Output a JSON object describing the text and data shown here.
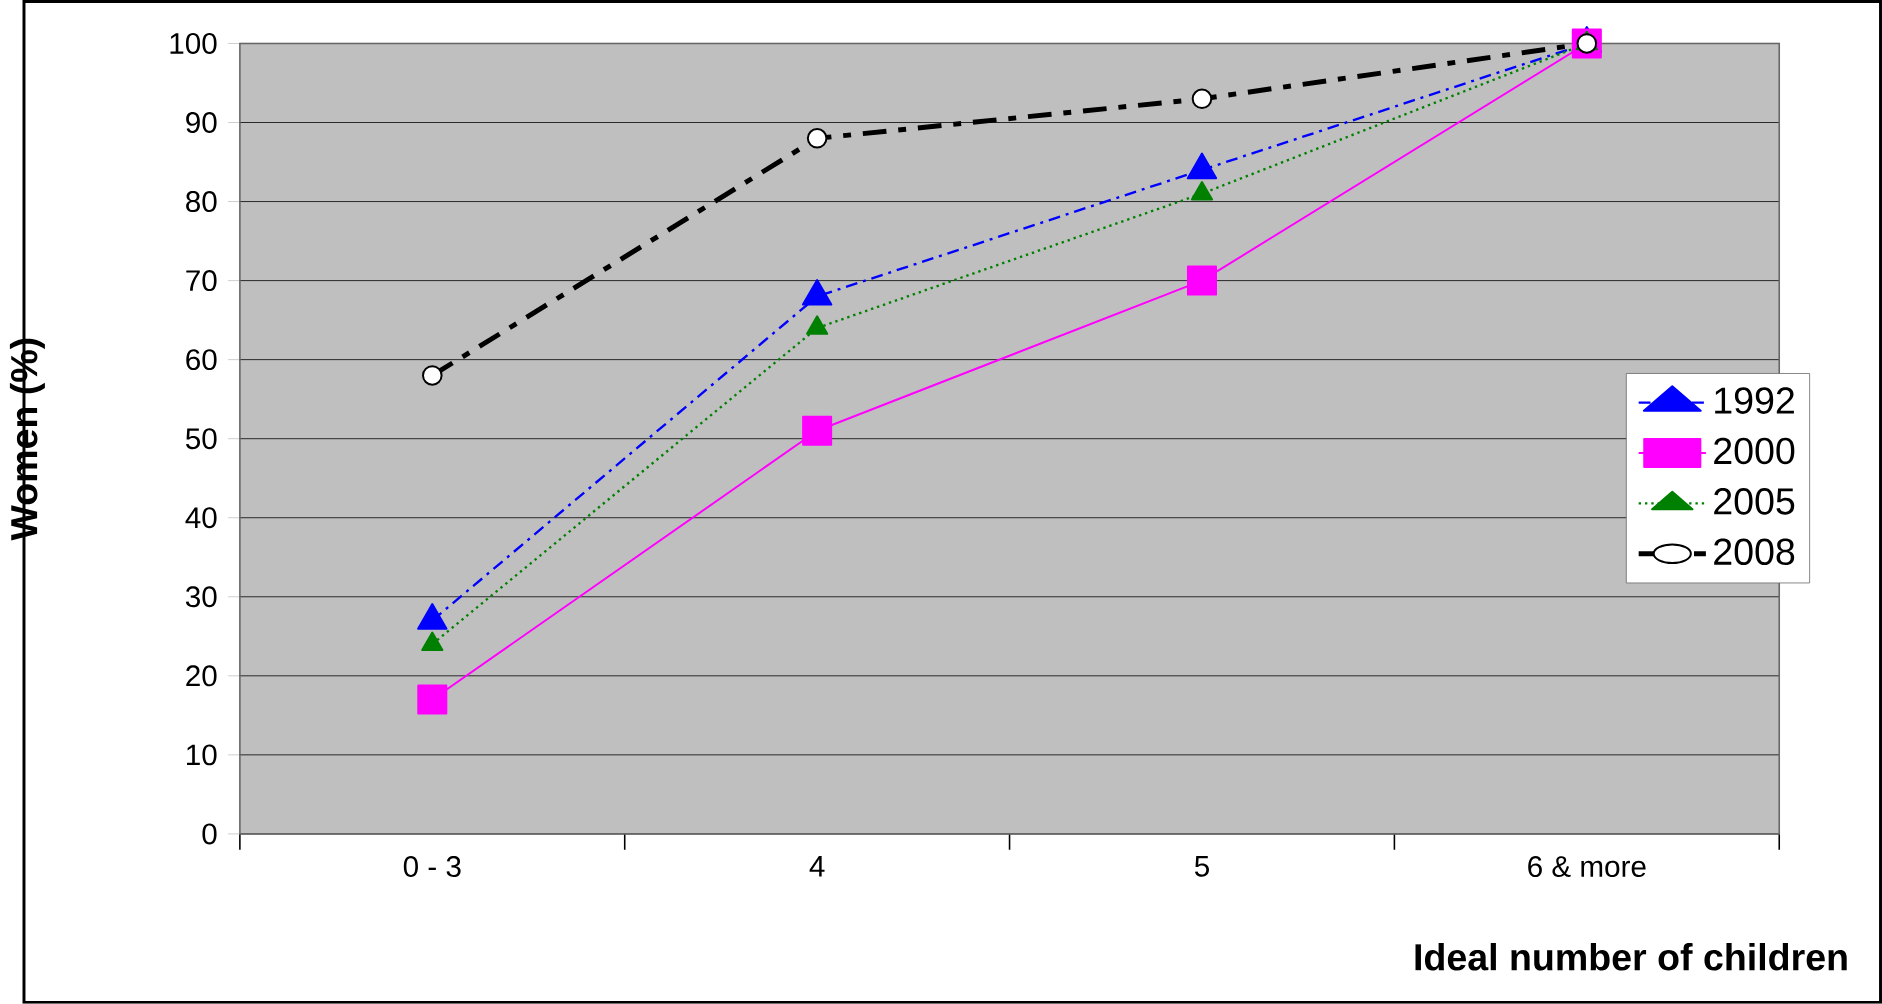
{
  "chart_data": {
    "type": "line",
    "xlabel": "Ideal number of children",
    "ylabel": "Women (%)",
    "categories": [
      "0 - 3",
      "4",
      "5",
      "6 & more"
    ],
    "series": [
      {
        "name": "1992",
        "color": "#0000ff",
        "marker": "triangle",
        "line_style": "dashdot",
        "values": [
          27,
          68,
          84,
          100
        ]
      },
      {
        "name": "2000",
        "color": "#ff00ff",
        "marker": "square",
        "line_style": "solid",
        "values": [
          17,
          51,
          70,
          100
        ]
      },
      {
        "name": "2005",
        "color": "#008000",
        "marker": "triangle",
        "line_style": "dotted",
        "values": [
          24,
          64,
          81,
          100
        ]
      },
      {
        "name": "2008",
        "color": "#000000",
        "marker": "circle",
        "line_style": "longdashdot",
        "values": [
          58,
          88,
          93,
          100
        ]
      }
    ],
    "ylim": [
      0,
      100
    ],
    "yticks": [
      0,
      10,
      20,
      30,
      40,
      50,
      60,
      70,
      80,
      90,
      100
    ],
    "grid": "y",
    "legend": "right"
  }
}
